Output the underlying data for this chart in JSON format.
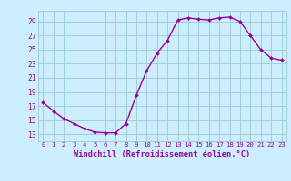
{
  "x": [
    0,
    1,
    2,
    3,
    4,
    5,
    6,
    7,
    8,
    9,
    10,
    11,
    12,
    13,
    14,
    15,
    16,
    17,
    18,
    19,
    20,
    21,
    22,
    23
  ],
  "y": [
    17.5,
    16.3,
    15.2,
    14.5,
    13.8,
    13.3,
    13.2,
    13.2,
    14.5,
    18.5,
    22.0,
    24.5,
    26.3,
    29.2,
    29.5,
    29.3,
    29.2,
    29.5,
    29.6,
    29.0,
    27.0,
    25.0,
    23.8,
    23.5
  ],
  "bg_color": "#cceeff",
  "line_color": "#990099",
  "marker_color": "#990099",
  "grid_color": "#99cccc",
  "axis_label_color": "#990099",
  "tick_color": "#990099",
  "xlabel": "Windchill (Refroidissement éolien,°C)",
  "yticks": [
    13,
    15,
    17,
    19,
    21,
    23,
    25,
    27,
    29
  ],
  "xticks": [
    0,
    1,
    2,
    3,
    4,
    5,
    6,
    7,
    8,
    9,
    10,
    11,
    12,
    13,
    14,
    15,
    16,
    17,
    18,
    19,
    20,
    21,
    22,
    23
  ],
  "ylim": [
    12.0,
    30.5
  ],
  "xlim": [
    -0.5,
    23.5
  ]
}
